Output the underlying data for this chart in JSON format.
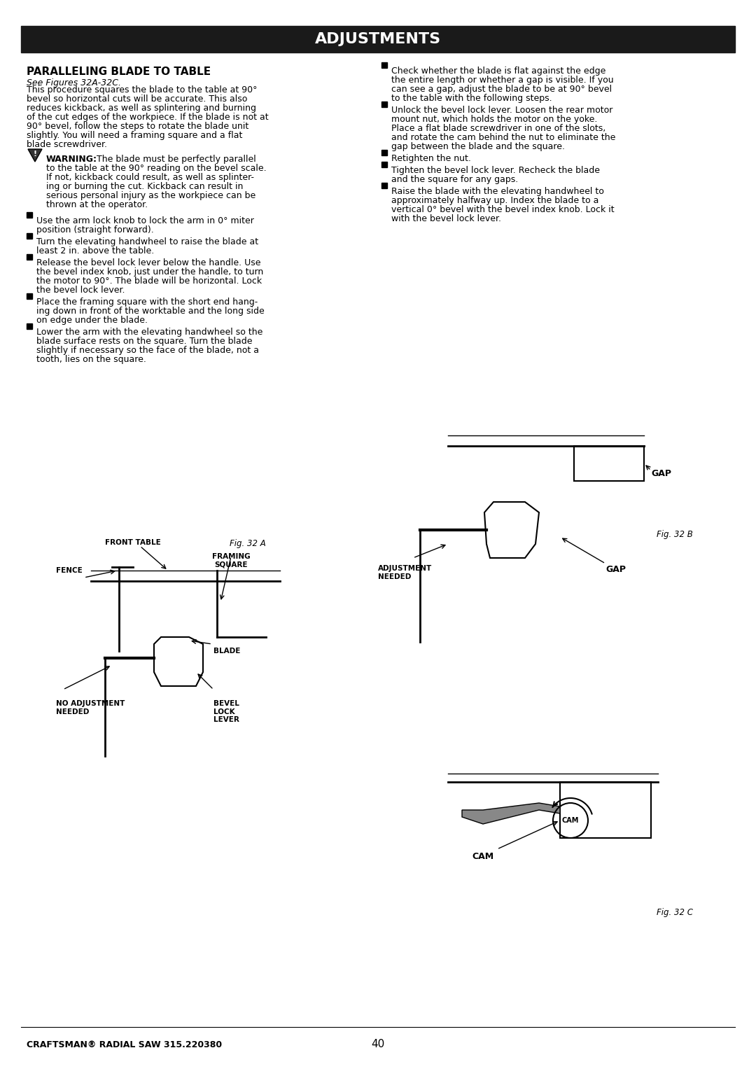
{
  "bg_color": "#ffffff",
  "header_bg": "#1a1a1a",
  "header_text": "ADJUSTMENTS",
  "header_text_color": "#ffffff",
  "header_fontsize": 16,
  "section_title": "PARALLELING BLADE TO TABLE",
  "section_subtitle": "See Figures 32A-32C.",
  "body_text_left": "This procedure squares the blade to the table at 90°\nbevel so horizontal cuts will be accurate. This also\nreduces kickback, as well as splintering and burning\nof the cut edges of the workpiece. If the blade is not at\n90° bevel, follow the steps to rotate the blade unit\nslightly. You will need a framing square and a flat\nblade screwdriver.",
  "warning_title": "WARNING:",
  "warning_body": "The blade must be perfectly parallel\nto the table at the 90° reading on the bevel scale.\nIf not, kickback could result, as well as splinter-\ning or burning the cut. Kickback can result in\nserious personal injury as the workpiece can be\nthrown at the operator.",
  "steps_left": [
    "Use the arm lock knob to lock the arm in 0° miter\nposition (straight forward).",
    "Turn the elevating handwheel to raise the blade at\nleast 2 in. above the table.",
    "Release the bevel lock lever below the handle. Use\nthe bevel index knob, just under the handle, to turn\nthe motor to 90°. The blade will be horizontal. Lock\nthe bevel lock lever.",
    "Place the framing square with the short end hang-\ning down in front of the worktable and the long side\non edge under the blade.",
    "Lower the arm with the elevating handwheel so the\nblade surface rests on the square. Turn the blade\nslightly if necessary so the face of the blade, not a\ntooth, lies on the square."
  ],
  "steps_right": [
    "Check whether the blade is flat against the edge\nthe entire length or whether a gap is visible. If you\ncan see a gap, adjust the blade to be at 90° bevel\nto the table with the following steps.",
    "Unlock the bevel lock lever. Loosen the rear motor\nmount nut, which holds the motor on the yoke.\nPlace a flat blade screwdriver in one of the slots,\nand rotate the cam behind the nut to eliminate the\ngap between the blade and the square.",
    "Retighten the nut.",
    "Tighten the bevel lock lever. Recheck the blade\nand the square for any gaps.",
    "Raise the blade with the elevating handwheel to\napproximately halfway up. Index the blade to a\nvertical 0° bevel with the bevel index knob. Lock it\nwith the bevel lock lever."
  ],
  "fig_labels": [
    "Fig. 32 A",
    "Fig. 32 B",
    "Fig. 32 C"
  ],
  "diagram_labels_32a": [
    "NO ADJUSTMENT\nNEEDED",
    "FENCE",
    "FRONT TABLE",
    "FRAMING\nSQUARE",
    "BEVEL\nLOCK\nLEVER",
    "BLADE"
  ],
  "diagram_labels_32b": [
    "ADJUSTMENT\nNEEDED",
    "GAP",
    "GAP"
  ],
  "diagram_labels_32c": [
    "CAM"
  ],
  "footer_left": "CRAFTSMAN® RADIAL SAW 315.220380",
  "footer_center": "40",
  "footer_fontsize": 9,
  "text_fontsize": 9,
  "label_fontsize": 8,
  "title_fontsize": 11,
  "subtitle_fontsize": 9
}
